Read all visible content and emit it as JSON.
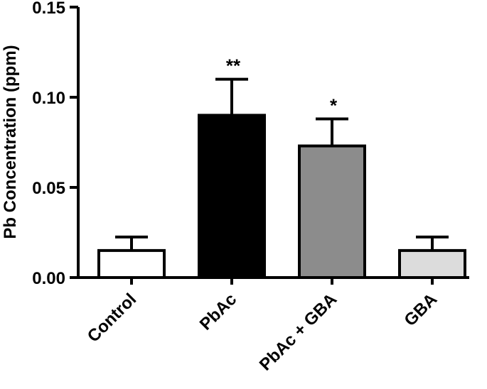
{
  "chart_data": {
    "type": "bar",
    "title": "",
    "xlabel": "",
    "ylabel": "Pb Concentration (ppm)",
    "ylim": [
      0,
      0.15
    ],
    "yticks": [
      "0.00",
      "0.05",
      "0.10",
      "0.15"
    ],
    "yticks_values": [
      0,
      0.05,
      0.1,
      0.15
    ],
    "grid": false,
    "categories": [
      "Control",
      "PbAc",
      "PbAc + GBA",
      "GBA"
    ],
    "values": [
      0.015,
      0.09,
      0.073,
      0.015
    ],
    "errors": [
      0.0075,
      0.02,
      0.015,
      0.0075
    ],
    "fills": [
      "#ffffff",
      "#000000",
      "#8c8c8c",
      "#dcdcdc"
    ],
    "significance": [
      "",
      "**",
      "*",
      ""
    ]
  }
}
